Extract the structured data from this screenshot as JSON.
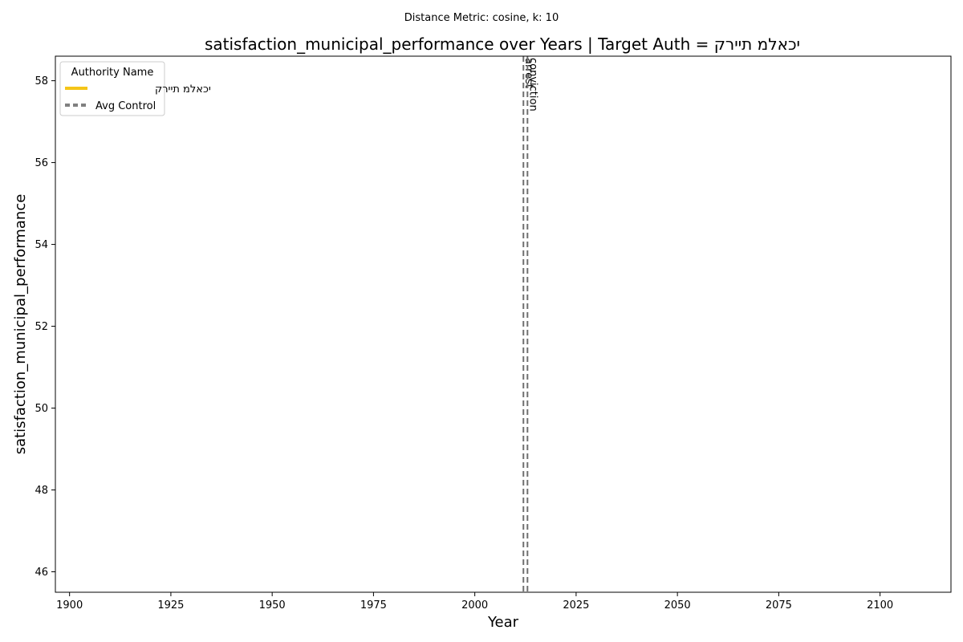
{
  "chart_data": {
    "type": "line",
    "suptitle": "Distance Metric: cosine, k: 10",
    "title": "satisfaction_municipal_performance over Years | Target Auth = יכאלמ תיירק",
    "xlabel": "Year",
    "ylabel": "satisfaction_municipal_performance",
    "xlim": [
      1896.5,
      2117.5
    ],
    "ylim": [
      45.5,
      58.6
    ],
    "x_ticks": [
      1900,
      1925,
      1950,
      1975,
      2000,
      2025,
      2050,
      2075,
      2100
    ],
    "y_ticks": [
      46,
      48,
      50,
      52,
      54,
      56,
      58
    ],
    "grid": false,
    "legend": {
      "title": "Authority Name",
      "placement": "top-left",
      "entries": [
        {
          "label": "יכאלמ תיירק",
          "color": "#f5c518",
          "style": "solid"
        },
        {
          "label": "Avg Control",
          "color": "#808080",
          "style": "dashed"
        }
      ]
    },
    "series": [
      {
        "name": "יכאלמ תיירק",
        "color": "#f5c518",
        "x": [],
        "y": []
      },
      {
        "name": "Avg Control",
        "color": "#808080",
        "x": [],
        "y": []
      }
    ],
    "annotations": [
      {
        "x": 2012,
        "label": "arrest",
        "color": "#707070"
      },
      {
        "x": 2013,
        "label": "conviction",
        "color": "#707070"
      }
    ]
  }
}
